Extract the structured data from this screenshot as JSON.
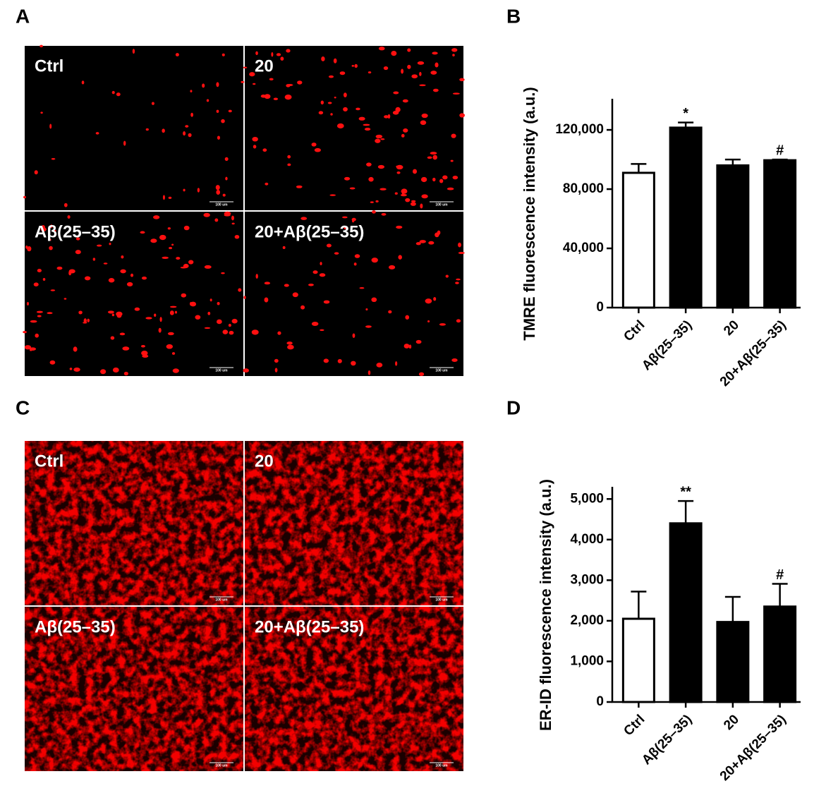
{
  "panel_labels": [
    "A",
    "B",
    "C",
    "D"
  ],
  "micrographs": [
    {
      "captions": [
        "Ctrl",
        "20",
        "Aβ(25–35)",
        "20+Aβ(25–35)"
      ],
      "scale_bar": "100 um",
      "style": "sparse"
    },
    {
      "captions": [
        "Ctrl",
        "20",
        "Aβ(25–35)",
        "20+Aβ(25–35)"
      ],
      "scale_bar": "100 um",
      "style": "dense"
    }
  ],
  "chart_data": [
    {
      "type": "bar",
      "ylabel": "TMRE fluorescence intensity (a.u.)",
      "categories": [
        "Ctrl",
        "Aβ(25–35)",
        "20",
        "20+Aβ(25–35)"
      ],
      "values": [
        91000,
        121500,
        96000,
        99500
      ],
      "errors": [
        6000,
        3500,
        4000,
        500
      ],
      "colors": [
        "#ffffff",
        "#000000",
        "#000000",
        "#000000"
      ],
      "ylim": [
        0,
        141000
      ],
      "yticks": [
        0,
        {
          "value": 40000,
          "label": "40,000"
        },
        {
          "value": 80000,
          "label": "80,000"
        },
        {
          "value": 120000,
          "label": "120,000"
        }
      ],
      "annotations": [
        {
          "text": "*",
          "category": "Aβ(25–35)"
        },
        {
          "text": "#",
          "category": "20+Aβ(25–35)"
        }
      ]
    },
    {
      "type": "bar",
      "ylabel": "ER-ID fluorescence intensity (a.u.)",
      "categories": [
        "Ctrl",
        "Aβ(25–35)",
        "20",
        "20+Aβ(25–35)"
      ],
      "values": [
        2050,
        4400,
        1970,
        2350
      ],
      "errors": [
        670,
        550,
        620,
        560
      ],
      "colors": [
        "#ffffff",
        "#000000",
        "#000000",
        "#000000"
      ],
      "ylim": [
        0,
        5300
      ],
      "yticks": [
        0,
        {
          "value": 1000,
          "label": "1,000"
        },
        {
          "value": 2000,
          "label": "2,000"
        },
        {
          "value": 3000,
          "label": "3,000"
        },
        {
          "value": 4000,
          "label": "4,000"
        },
        {
          "value": 5000,
          "label": "5,000"
        }
      ],
      "annotations": [
        {
          "text": "**",
          "category": "Aβ(25–35)"
        },
        {
          "text": "#",
          "category": "20+Aβ(25–35)"
        }
      ]
    }
  ]
}
